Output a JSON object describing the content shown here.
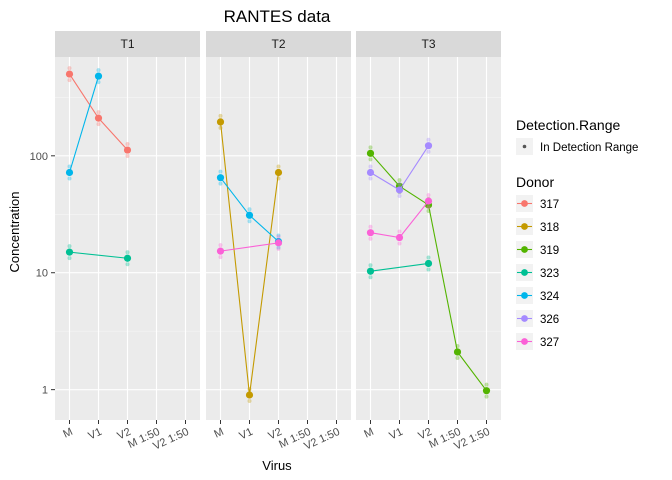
{
  "chart_data": {
    "type": "line",
    "title": "RANTES data",
    "xlabel": "Virus",
    "ylabel": "Concentration",
    "y_scale": "log10",
    "ylim": [
      0.55,
      700
    ],
    "y_ticks": [
      "1",
      "10",
      "100"
    ],
    "x_categories": [
      "M",
      "V1",
      "V2",
      "M 1:50",
      "V2 1:50"
    ],
    "panels": [
      "T1",
      "T2",
      "T3"
    ],
    "grid": true,
    "legend_position": "right",
    "legend_groups": [
      {
        "title": "Detection.Range",
        "entries": [
          {
            "label": "In Detection Range"
          }
        ]
      },
      {
        "title": "Donor",
        "entries": [
          {
            "label": "317",
            "color": "#F8766D"
          },
          {
            "label": "318",
            "color": "#C49A00"
          },
          {
            "label": "319",
            "color": "#53B400"
          },
          {
            "label": "323",
            "color": "#00C094"
          },
          {
            "label": "324",
            "color": "#00B6EB"
          },
          {
            "label": "326",
            "color": "#A58AFF"
          },
          {
            "label": "327",
            "color": "#FB61D7"
          }
        ]
      }
    ],
    "series": [
      {
        "panel": "T1",
        "donor": "317",
        "color": "#F8766D",
        "points": [
          {
            "x": "M",
            "y": 500
          },
          {
            "x": "V1",
            "y": 210
          },
          {
            "x": "V2",
            "y": 112
          }
        ]
      },
      {
        "panel": "T1",
        "donor": "323",
        "color": "#00C094",
        "points": [
          {
            "x": "M",
            "y": 15
          },
          {
            "x": "V2",
            "y": 13.3
          }
        ]
      },
      {
        "panel": "T1",
        "donor": "324",
        "color": "#00B6EB",
        "points": [
          {
            "x": "M",
            "y": 72
          },
          {
            "x": "V1",
            "y": 480
          }
        ]
      },
      {
        "panel": "T2",
        "donor": "318",
        "color": "#C49A00",
        "points": [
          {
            "x": "M",
            "y": 195
          },
          {
            "x": "V1",
            "y": 0.9
          },
          {
            "x": "V2",
            "y": 72
          }
        ]
      },
      {
        "panel": "T2",
        "donor": "324",
        "color": "#00B6EB",
        "points": [
          {
            "x": "M",
            "y": 65
          },
          {
            "x": "V1",
            "y": 31
          },
          {
            "x": "V2",
            "y": 18.5
          }
        ]
      },
      {
        "panel": "T2",
        "donor": "327",
        "color": "#FB61D7",
        "points": [
          {
            "x": "M",
            "y": 15.3
          },
          {
            "x": "V2",
            "y": 18
          }
        ]
      },
      {
        "panel": "T3",
        "donor": "319",
        "color": "#53B400",
        "points": [
          {
            "x": "M",
            "y": 105
          },
          {
            "x": "V1",
            "y": 55
          },
          {
            "x": "V2",
            "y": 38
          },
          {
            "x": "M 1:50",
            "y": 2.1
          },
          {
            "x": "V2 1:50",
            "y": 0.98
          }
        ]
      },
      {
        "panel": "T3",
        "donor": "323",
        "color": "#00C094",
        "points": [
          {
            "x": "M",
            "y": 10.3
          },
          {
            "x": "V2",
            "y": 12
          }
        ]
      },
      {
        "panel": "T3",
        "donor": "326",
        "color": "#A58AFF",
        "points": [
          {
            "x": "M",
            "y": 72
          },
          {
            "x": "V1",
            "y": 51
          },
          {
            "x": "V2",
            "y": 122
          }
        ]
      },
      {
        "panel": "T3",
        "donor": "327",
        "color": "#FB61D7",
        "points": [
          {
            "x": "M",
            "y": 22
          },
          {
            "x": "V1",
            "y": 20
          },
          {
            "x": "V2",
            "y": 41
          }
        ]
      }
    ]
  }
}
